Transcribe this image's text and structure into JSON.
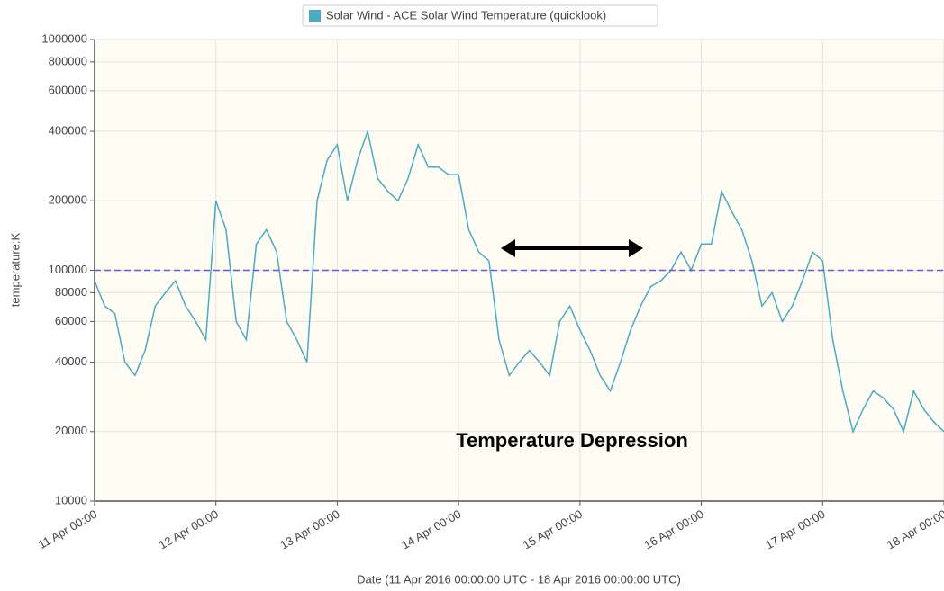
{
  "chart_data": {
    "type": "line",
    "xlabel": "Date (11 Apr 2016 00:00:00 UTC - 18 Apr 2016 00:00:00 UTC)",
    "ylabel": "temperature:K",
    "annotation": "Temperature Depression",
    "log_y": true,
    "grid": true,
    "reference_line": {
      "value": 100000,
      "color": "#5a5ae6"
    },
    "xlim": [
      "11 Apr 00:00",
      "18 Apr 00:00"
    ],
    "xticks": [
      "11 Apr 00:00",
      "12 Apr 00:00",
      "13 Apr 00:00",
      "14 Apr 00:00",
      "15 Apr 00:00",
      "16 Apr 00:00",
      "17 Apr 00:00",
      "18 Apr 00:00"
    ],
    "ylim": [
      10000,
      1000000
    ],
    "yticks": [
      10000,
      20000,
      40000,
      60000,
      80000,
      100000,
      200000,
      400000,
      600000,
      800000,
      1000000
    ],
    "x": [
      "11 Apr 00:00",
      "11 Apr 02:00",
      "11 Apr 04:00",
      "11 Apr 06:00",
      "11 Apr 08:00",
      "11 Apr 10:00",
      "11 Apr 12:00",
      "11 Apr 14:00",
      "11 Apr 16:00",
      "11 Apr 18:00",
      "11 Apr 20:00",
      "11 Apr 22:00",
      "12 Apr 00:00",
      "12 Apr 02:00",
      "12 Apr 04:00",
      "12 Apr 06:00",
      "12 Apr 08:00",
      "12 Apr 10:00",
      "12 Apr 12:00",
      "12 Apr 14:00",
      "12 Apr 16:00",
      "12 Apr 18:00",
      "12 Apr 20:00",
      "12 Apr 22:00",
      "13 Apr 00:00",
      "13 Apr 02:00",
      "13 Apr 04:00",
      "13 Apr 06:00",
      "13 Apr 08:00",
      "13 Apr 10:00",
      "13 Apr 12:00",
      "13 Apr 14:00",
      "13 Apr 16:00",
      "13 Apr 18:00",
      "13 Apr 20:00",
      "13 Apr 22:00",
      "14 Apr 00:00",
      "14 Apr 02:00",
      "14 Apr 04:00",
      "14 Apr 06:00",
      "14 Apr 08:00",
      "14 Apr 10:00",
      "14 Apr 12:00",
      "14 Apr 14:00",
      "14 Apr 16:00",
      "14 Apr 18:00",
      "14 Apr 20:00",
      "14 Apr 22:00",
      "15 Apr 00:00",
      "15 Apr 02:00",
      "15 Apr 04:00",
      "15 Apr 06:00",
      "15 Apr 08:00",
      "15 Apr 10:00",
      "15 Apr 12:00",
      "15 Apr 14:00",
      "15 Apr 16:00",
      "15 Apr 18:00",
      "15 Apr 20:00",
      "15 Apr 22:00",
      "16 Apr 00:00",
      "16 Apr 02:00",
      "16 Apr 04:00",
      "16 Apr 06:00",
      "16 Apr 08:00",
      "16 Apr 10:00",
      "16 Apr 12:00",
      "16 Apr 14:00",
      "16 Apr 16:00",
      "16 Apr 18:00",
      "16 Apr 20:00",
      "16 Apr 22:00",
      "17 Apr 00:00",
      "17 Apr 02:00",
      "17 Apr 04:00",
      "17 Apr 06:00",
      "17 Apr 08:00",
      "17 Apr 10:00",
      "17 Apr 12:00",
      "17 Apr 14:00",
      "17 Apr 16:00",
      "17 Apr 18:00",
      "17 Apr 20:00",
      "17 Apr 22:00",
      "18 Apr 00:00"
    ],
    "series": [
      {
        "name": "Solar Wind - ACE Solar Wind Temperature (quicklook)",
        "color": "#4aabc3",
        "values": [
          90000,
          70000,
          65000,
          40000,
          35000,
          45000,
          70000,
          80000,
          90000,
          70000,
          60000,
          50000,
          200000,
          150000,
          60000,
          50000,
          130000,
          150000,
          120000,
          60000,
          50000,
          40000,
          200000,
          300000,
          350000,
          200000,
          300000,
          400000,
          250000,
          220000,
          200000,
          250000,
          350000,
          280000,
          280000,
          260000,
          260000,
          150000,
          120000,
          110000,
          50000,
          35000,
          40000,
          45000,
          40000,
          35000,
          60000,
          70000,
          55000,
          45000,
          35000,
          30000,
          40000,
          55000,
          70000,
          85000,
          90000,
          100000,
          120000,
          100000,
          130000,
          130000,
          220000,
          180000,
          150000,
          110000,
          70000,
          80000,
          60000,
          70000,
          90000,
          120000,
          110000,
          50000,
          30000,
          20000,
          25000,
          30000,
          28000,
          25000,
          20000,
          30000,
          25000,
          22000,
          20000
        ]
      }
    ]
  }
}
